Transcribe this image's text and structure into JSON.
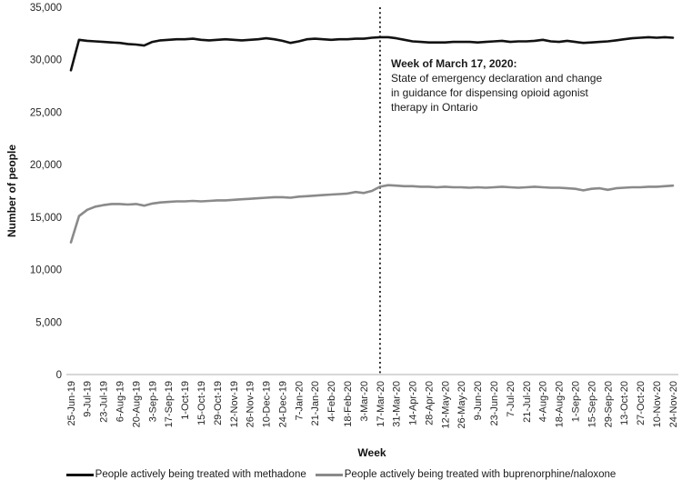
{
  "chart_data": {
    "type": "line",
    "title": "",
    "xlabel": "Week",
    "ylabel": "Number of people",
    "ylim": [
      0,
      35000
    ],
    "ytick_step": 5000,
    "y_tick_labels": [
      "0",
      "5,000",
      "10,000",
      "15,000",
      "20,000",
      "25,000",
      "30,000",
      "35,000"
    ],
    "grid": false,
    "legend_position": "bottom",
    "x_tick_labels": [
      "25-Jun-19",
      "9-Jul-19",
      "23-Jul-19",
      "6-Aug-19",
      "20-Aug-19",
      "3-Sep-19",
      "17-Sep-19",
      "1-Oct-19",
      "15-Oct-19",
      "29-Oct-19",
      "12-Nov-19",
      "26-Nov-19",
      "10-Dec-19",
      "24-Dec-19",
      "7-Jan-20",
      "21-Jan-20",
      "4-Feb-20",
      "18-Feb-20",
      "3-Mar-20",
      "17-Mar-20",
      "31-Mar-20",
      "14-Apr-20",
      "28-Apr-20",
      "12-May-20",
      "26-May-20",
      "9-Jun-20",
      "23-Jun-20",
      "7-Jul-20",
      "21-Jul-20",
      "4-Aug-20",
      "18-Aug-20",
      "1-Sep-20",
      "15-Sep-20",
      "29-Sep-20",
      "13-Oct-20",
      "27-Oct-20",
      "10-Nov-20",
      "24-Nov-20"
    ],
    "weeks_per_tick": 2,
    "series": [
      {
        "name": "People actively being treated with methadone",
        "color": "#121212",
        "values": [
          29000,
          31900,
          31800,
          31750,
          31700,
          31650,
          31600,
          31500,
          31450,
          31350,
          31700,
          31850,
          31900,
          31950,
          31950,
          32000,
          31900,
          31850,
          31900,
          31950,
          31900,
          31850,
          31900,
          31950,
          32050,
          31950,
          31800,
          31600,
          31750,
          31950,
          32000,
          31950,
          31900,
          31950,
          31950,
          32000,
          32000,
          32100,
          32150,
          32150,
          32050,
          31900,
          31750,
          31700,
          31650,
          31650,
          31650,
          31700,
          31700,
          31700,
          31650,
          31700,
          31750,
          31800,
          31700,
          31750,
          31750,
          31800,
          31900,
          31750,
          31700,
          31800,
          31700,
          31600,
          31650,
          31700,
          31750,
          31850,
          31950,
          32050,
          32100,
          32150,
          32100,
          32150,
          32100
        ]
      },
      {
        "name": "People actively being treated with buprenorphine/naloxone",
        "color": "#8a8a8a",
        "values": [
          12600,
          15100,
          15700,
          16000,
          16150,
          16250,
          16250,
          16200,
          16250,
          16100,
          16300,
          16400,
          16450,
          16500,
          16500,
          16550,
          16500,
          16550,
          16600,
          16600,
          16650,
          16700,
          16750,
          16800,
          16850,
          16900,
          16900,
          16850,
          16950,
          17000,
          17050,
          17100,
          17150,
          17200,
          17250,
          17400,
          17300,
          17500,
          17900,
          18050,
          18000,
          17950,
          17950,
          17900,
          17900,
          17850,
          17900,
          17850,
          17850,
          17800,
          17850,
          17800,
          17850,
          17900,
          17850,
          17800,
          17850,
          17900,
          17850,
          17800,
          17800,
          17750,
          17700,
          17550,
          17700,
          17750,
          17600,
          17750,
          17800,
          17850,
          17850,
          17900,
          17900,
          17950,
          18000
        ]
      }
    ],
    "vline": {
      "at_label": "17-Mar-20",
      "week_index": 38,
      "style": "dotted",
      "color": "#000000"
    },
    "annotation": {
      "title": "Week of March 17, 2020:",
      "body": "State of emergency declaration and change in guidance for dispensing opioid agonist therapy in Ontario"
    },
    "axis_line_color": "#bfbfbf"
  }
}
